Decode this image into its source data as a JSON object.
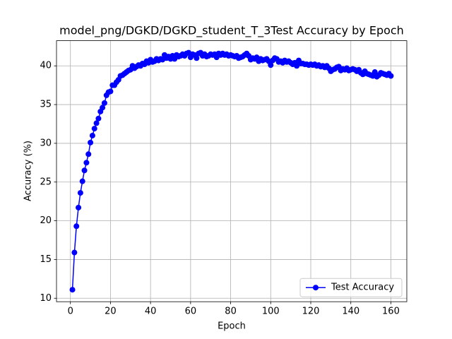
{
  "chart_data": {
    "type": "line",
    "title": "model_png/DGKD/DGKD_student_T_3Test Accuracy by Epoch",
    "x_label": "Epoch",
    "y_label": "Accuracy (%)",
    "x": [
      1,
      2,
      3,
      4,
      5,
      6,
      7,
      8,
      9,
      10,
      11,
      12,
      13,
      14,
      15,
      16,
      17,
      18,
      19,
      20,
      21,
      22,
      23,
      24,
      25,
      26,
      27,
      28,
      29,
      30,
      31,
      32,
      33,
      34,
      35,
      36,
      37,
      38,
      39,
      40,
      41,
      42,
      43,
      44,
      45,
      46,
      47,
      48,
      49,
      50,
      51,
      52,
      53,
      54,
      55,
      56,
      57,
      58,
      59,
      60,
      61,
      62,
      63,
      64,
      65,
      66,
      67,
      68,
      69,
      70,
      71,
      72,
      73,
      74,
      75,
      76,
      77,
      78,
      79,
      80,
      81,
      82,
      83,
      84,
      85,
      86,
      87,
      88,
      89,
      90,
      91,
      92,
      93,
      94,
      95,
      96,
      97,
      98,
      99,
      100,
      101,
      102,
      103,
      104,
      105,
      106,
      107,
      108,
      109,
      110,
      111,
      112,
      113,
      114,
      115,
      116,
      117,
      118,
      119,
      120,
      121,
      122,
      123,
      124,
      125,
      126,
      127,
      128,
      129,
      130,
      131,
      132,
      133,
      134,
      135,
      136,
      137,
      138,
      139,
      140,
      141,
      142,
      143,
      144,
      145,
      146,
      147,
      148,
      149,
      150,
      151,
      152,
      153,
      154,
      155,
      156,
      157,
      158,
      159,
      160
    ],
    "series": [
      {
        "name": "Test Accuracy",
        "color": "#0000ff",
        "values": [
          11.1,
          15.9,
          19.3,
          21.7,
          23.6,
          25.1,
          26.5,
          27.5,
          28.6,
          30.1,
          31.0,
          31.9,
          32.6,
          33.2,
          34.1,
          34.6,
          35.2,
          36.2,
          36.6,
          36.7,
          37.5,
          37.5,
          37.9,
          38.2,
          38.7,
          38.8,
          39.0,
          39.2,
          39.4,
          39.5,
          40.0,
          39.7,
          39.9,
          40.1,
          40.0,
          40.3,
          40.2,
          40.6,
          40.4,
          40.8,
          40.5,
          40.6,
          40.9,
          40.7,
          40.9,
          40.8,
          41.4,
          41.0,
          41.2,
          40.9,
          41.3,
          40.9,
          41.4,
          41.2,
          41.3,
          41.5,
          41.3,
          41.6,
          41.7,
          41.1,
          41.5,
          41.4,
          41.0,
          41.6,
          41.7,
          41.3,
          41.5,
          41.2,
          41.3,
          41.5,
          41.4,
          41.5,
          41.1,
          41.6,
          41.4,
          41.6,
          41.4,
          41.5,
          41.3,
          41.4,
          41.3,
          41.2,
          41.3,
          41.0,
          41.1,
          41.2,
          41.4,
          41.6,
          41.3,
          40.8,
          41.0,
          40.9,
          41.1,
          40.6,
          40.9,
          40.7,
          40.8,
          40.9,
          40.6,
          40.1,
          40.7,
          41.0,
          40.9,
          40.5,
          40.6,
          40.4,
          40.7,
          40.5,
          40.6,
          40.4,
          40.2,
          40.4,
          40.0,
          40.7,
          40.3,
          40.3,
          40.2,
          40.2,
          40.1,
          40.2,
          40.1,
          40.2,
          40.0,
          40.1,
          39.9,
          40.0,
          39.8,
          40.0,
          39.7,
          39.3,
          39.5,
          39.6,
          39.8,
          39.9,
          39.4,
          39.6,
          39.5,
          39.7,
          39.4,
          39.5,
          39.6,
          39.5,
          39.3,
          39.5,
          39.1,
          38.9,
          39.3,
          39.0,
          38.9,
          38.8,
          38.7,
          39.2,
          38.6,
          38.8,
          39.1,
          39.0,
          38.9,
          38.8,
          39.0,
          38.7
        ]
      }
    ],
    "xlim": [
      -6.95,
      167.95
    ],
    "xticks": [
      0,
      20,
      40,
      60,
      80,
      100,
      120,
      140,
      160
    ],
    "ylim": [
      9.55,
      43.25
    ],
    "yticks": [
      10,
      15,
      20,
      25,
      30,
      35,
      40
    ],
    "grid": true,
    "legend": "lower right"
  }
}
